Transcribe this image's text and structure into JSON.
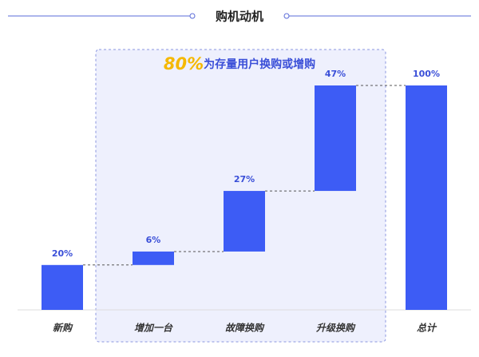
{
  "chart_data": {
    "type": "waterfall",
    "title": "购机动机",
    "annotation": {
      "highlight": "80%",
      "text": "为存量用户换购或增购"
    },
    "categories": [
      "新购",
      "增加一台",
      "故障换购",
      "升级换购",
      "总计"
    ],
    "values": [
      20,
      6,
      27,
      47,
      100
    ],
    "value_labels": [
      "20%",
      "6%",
      "27%",
      "47%",
      "100%"
    ],
    "color": "#3d5cf5"
  }
}
